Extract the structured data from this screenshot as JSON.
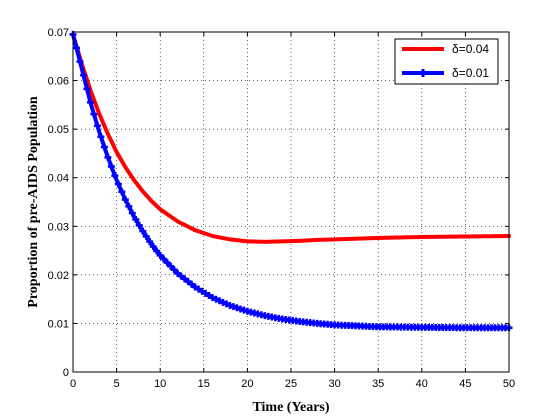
{
  "chart_data": {
    "type": "line",
    "title": "",
    "xlabel": "Time (Years)",
    "ylabel": "Proportion of pre-AIDS Population",
    "xlim": [
      0,
      50
    ],
    "ylim": [
      0,
      0.07
    ],
    "xticks": [
      0,
      5,
      10,
      15,
      20,
      25,
      30,
      35,
      40,
      45,
      50
    ],
    "yticks": [
      0,
      0.01,
      0.02,
      0.03,
      0.04,
      0.05,
      0.06,
      0.07
    ],
    "grid": true,
    "legend_position": "top-right",
    "series": [
      {
        "name": "δ=0.04",
        "color": "#ff0000",
        "marker": "none",
        "x": [
          0,
          1,
          2,
          3,
          4,
          5,
          6,
          7,
          8,
          9,
          10,
          12,
          14,
          16,
          18,
          20,
          22,
          24,
          26,
          28,
          30,
          35,
          40,
          45,
          50
        ],
        "y": [
          0.0695,
          0.0635,
          0.058,
          0.0532,
          0.049,
          0.0453,
          0.0422,
          0.0395,
          0.0372,
          0.0352,
          0.0335,
          0.031,
          0.0292,
          0.028,
          0.0273,
          0.0269,
          0.0268,
          0.0269,
          0.027,
          0.0272,
          0.0273,
          0.0276,
          0.0278,
          0.0279,
          0.028
        ]
      },
      {
        "name": "δ=0.01",
        "color": "#0000ff",
        "marker": "plus",
        "x": [
          0,
          1,
          2,
          3,
          4,
          5,
          6,
          7,
          8,
          9,
          10,
          12,
          14,
          16,
          18,
          20,
          22,
          24,
          26,
          28,
          30,
          35,
          40,
          45,
          50
        ],
        "y": [
          0.0695,
          0.0625,
          0.0555,
          0.0495,
          0.0442,
          0.0395,
          0.0355,
          0.032,
          0.029,
          0.0263,
          0.024,
          0.0203,
          0.0175,
          0.0153,
          0.0137,
          0.0125,
          0.0116,
          0.0109,
          0.0104,
          0.01,
          0.0097,
          0.0093,
          0.0092,
          0.0091,
          0.0091
        ]
      }
    ]
  }
}
